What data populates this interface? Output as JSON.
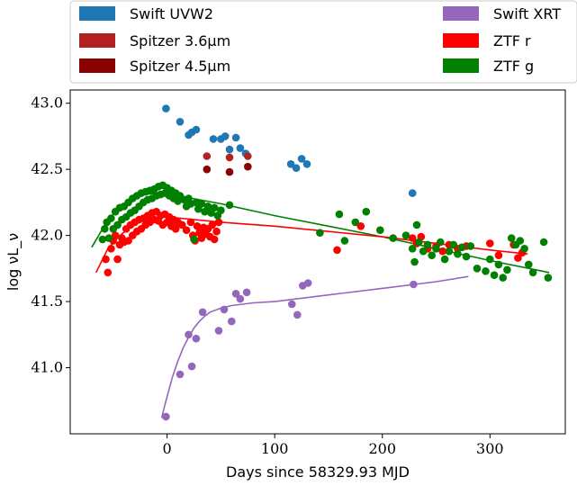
{
  "chart_data": {
    "type": "scatter",
    "xlabel": "Days since 58329.93 MJD",
    "ylabel": "log νL_ν",
    "xlim": [
      -90,
      370
    ],
    "ylim": [
      40.5,
      43.1
    ],
    "xticks": [
      0,
      100,
      200,
      300
    ],
    "yticks": [
      41.0,
      41.5,
      42.0,
      42.5,
      43.0
    ],
    "xtick_labels": [
      "0",
      "100",
      "200",
      "300"
    ],
    "ytick_labels": [
      "41.0",
      "41.5",
      "42.0",
      "42.5",
      "43.0"
    ],
    "legend_position": "top, outside plot",
    "series": [
      {
        "name": "Swift UVW2",
        "color": "#1f77b4",
        "points": [
          [
            -1,
            42.96
          ],
          [
            12,
            42.86
          ],
          [
            20,
            42.76
          ],
          [
            23,
            42.78
          ],
          [
            27,
            42.8
          ],
          [
            43,
            42.73
          ],
          [
            50,
            42.73
          ],
          [
            54,
            42.75
          ],
          [
            58,
            42.65
          ],
          [
            64,
            42.74
          ],
          [
            68,
            42.66
          ],
          [
            73,
            42.62
          ],
          [
            115,
            42.54
          ],
          [
            120,
            42.51
          ],
          [
            125,
            42.58
          ],
          [
            130,
            42.54
          ],
          [
            228,
            42.32
          ]
        ]
      },
      {
        "name": "Spitzer 3.6μm",
        "color": "#b22222",
        "points": [
          [
            37,
            42.6
          ],
          [
            58,
            42.59
          ],
          [
            75,
            42.6
          ]
        ]
      },
      {
        "name": "Spitzer 4.5μm",
        "color": "#8b0000",
        "points": [
          [
            37,
            42.5
          ],
          [
            58,
            42.48
          ],
          [
            75,
            42.52
          ]
        ]
      },
      {
        "name": "Swift XRT",
        "color": "#9467bd",
        "points": [
          [
            -1,
            40.63
          ],
          [
            12,
            40.95
          ],
          [
            20,
            41.25
          ],
          [
            23,
            41.01
          ],
          [
            27,
            41.22
          ],
          [
            33,
            41.42
          ],
          [
            48,
            41.28
          ],
          [
            53,
            41.44
          ],
          [
            60,
            41.35
          ],
          [
            64,
            41.56
          ],
          [
            68,
            41.52
          ],
          [
            74,
            41.57
          ],
          [
            116,
            41.48
          ],
          [
            121,
            41.4
          ],
          [
            126,
            41.62
          ],
          [
            131,
            41.64
          ],
          [
            229,
            41.63
          ]
        ]
      },
      {
        "name": "ZTF r",
        "color": "#ff0000",
        "points": [
          [
            -57,
            41.82
          ],
          [
            -55,
            41.72
          ],
          [
            -52,
            41.9
          ],
          [
            -50,
            41.96
          ],
          [
            -48,
            42.0
          ],
          [
            -46,
            41.82
          ],
          [
            -44,
            41.93
          ],
          [
            -42,
            41.98
          ],
          [
            -40,
            41.95
          ],
          [
            -38,
            42.05
          ],
          [
            -36,
            41.96
          ],
          [
            -34,
            42.08
          ],
          [
            -32,
            42.0
          ],
          [
            -30,
            42.1
          ],
          [
            -28,
            42.03
          ],
          [
            -26,
            42.12
          ],
          [
            -24,
            42.05
          ],
          [
            -22,
            42.13
          ],
          [
            -20,
            42.08
          ],
          [
            -18,
            42.15
          ],
          [
            -16,
            42.1
          ],
          [
            -14,
            42.17
          ],
          [
            -12,
            42.12
          ],
          [
            -10,
            42.18
          ],
          [
            -8,
            42.11
          ],
          [
            -6,
            42.15
          ],
          [
            -4,
            42.08
          ],
          [
            -2,
            42.16
          ],
          [
            0,
            42.1
          ],
          [
            2,
            42.14
          ],
          [
            4,
            42.07
          ],
          [
            6,
            42.12
          ],
          [
            8,
            42.05
          ],
          [
            10,
            42.1
          ],
          [
            14,
            42.08
          ],
          [
            18,
            42.04
          ],
          [
            22,
            42.1
          ],
          [
            24,
            42.0
          ],
          [
            26,
            41.96
          ],
          [
            28,
            42.07
          ],
          [
            30,
            42.02
          ],
          [
            32,
            41.98
          ],
          [
            34,
            42.06
          ],
          [
            36,
            42.01
          ],
          [
            38,
            42.05
          ],
          [
            40,
            41.99
          ],
          [
            42,
            42.08
          ],
          [
            44,
            41.97
          ],
          [
            46,
            42.03
          ],
          [
            48,
            42.1
          ],
          [
            158,
            41.89
          ],
          [
            180,
            42.07
          ],
          [
            228,
            41.98
          ],
          [
            232,
            41.94
          ],
          [
            236,
            41.99
          ],
          [
            242,
            41.9
          ],
          [
            250,
            41.92
          ],
          [
            256,
            41.88
          ],
          [
            262,
            41.93
          ],
          [
            270,
            41.9
          ],
          [
            278,
            41.92
          ],
          [
            300,
            41.94
          ],
          [
            308,
            41.85
          ],
          [
            322,
            41.93
          ],
          [
            326,
            41.83
          ],
          [
            330,
            41.87
          ]
        ]
      },
      {
        "name": "ZTF g",
        "color": "#008000",
        "points": [
          [
            -60,
            41.97
          ],
          [
            -58,
            42.05
          ],
          [
            -56,
            42.1
          ],
          [
            -54,
            41.98
          ],
          [
            -52,
            42.13
          ],
          [
            -50,
            42.05
          ],
          [
            -48,
            42.18
          ],
          [
            -46,
            42.08
          ],
          [
            -44,
            42.21
          ],
          [
            -42,
            42.12
          ],
          [
            -40,
            42.22
          ],
          [
            -38,
            42.14
          ],
          [
            -36,
            42.25
          ],
          [
            -34,
            42.17
          ],
          [
            -32,
            42.28
          ],
          [
            -30,
            42.19
          ],
          [
            -28,
            42.3
          ],
          [
            -26,
            42.22
          ],
          [
            -24,
            42.32
          ],
          [
            -22,
            42.25
          ],
          [
            -20,
            42.33
          ],
          [
            -18,
            42.27
          ],
          [
            -16,
            42.34
          ],
          [
            -14,
            42.28
          ],
          [
            -12,
            42.35
          ],
          [
            -10,
            42.3
          ],
          [
            -8,
            42.37
          ],
          [
            -6,
            42.31
          ],
          [
            -4,
            42.38
          ],
          [
            -2,
            42.32
          ],
          [
            0,
            42.36
          ],
          [
            2,
            42.3
          ],
          [
            4,
            42.34
          ],
          [
            6,
            42.28
          ],
          [
            8,
            42.32
          ],
          [
            10,
            42.26
          ],
          [
            12,
            42.3
          ],
          [
            16,
            42.27
          ],
          [
            18,
            42.22
          ],
          [
            20,
            42.28
          ],
          [
            22,
            42.24
          ],
          [
            25,
            41.97
          ],
          [
            27,
            42.25
          ],
          [
            29,
            42.2
          ],
          [
            32,
            42.24
          ],
          [
            35,
            42.18
          ],
          [
            38,
            42.22
          ],
          [
            41,
            42.17
          ],
          [
            44,
            42.21
          ],
          [
            47,
            42.15
          ],
          [
            50,
            42.19
          ],
          [
            58,
            42.23
          ],
          [
            142,
            42.02
          ],
          [
            160,
            42.16
          ],
          [
            165,
            41.96
          ],
          [
            175,
            42.1
          ],
          [
            185,
            42.18
          ],
          [
            198,
            42.04
          ],
          [
            210,
            41.98
          ],
          [
            222,
            42.0
          ],
          [
            228,
            41.9
          ],
          [
            230,
            41.8
          ],
          [
            232,
            42.08
          ],
          [
            234,
            41.95
          ],
          [
            238,
            41.88
          ],
          [
            242,
            41.93
          ],
          [
            246,
            41.85
          ],
          [
            250,
            41.9
          ],
          [
            254,
            41.95
          ],
          [
            258,
            41.82
          ],
          [
            262,
            41.88
          ],
          [
            266,
            41.93
          ],
          [
            270,
            41.86
          ],
          [
            274,
            41.91
          ],
          [
            278,
            41.84
          ],
          [
            282,
            41.92
          ],
          [
            288,
            41.75
          ],
          [
            296,
            41.73
          ],
          [
            300,
            41.82
          ],
          [
            304,
            41.7
          ],
          [
            308,
            41.78
          ],
          [
            312,
            41.68
          ],
          [
            316,
            41.74
          ],
          [
            320,
            41.98
          ],
          [
            324,
            41.93
          ],
          [
            328,
            41.96
          ],
          [
            332,
            41.9
          ],
          [
            336,
            41.78
          ],
          [
            340,
            41.72
          ],
          [
            350,
            41.95
          ],
          [
            354,
            41.68
          ]
        ]
      }
    ],
    "fit_lines": [
      {
        "color": "#008000",
        "points": [
          [
            -70,
            41.91
          ],
          [
            -60,
            42.05
          ],
          [
            -50,
            42.16
          ],
          [
            -40,
            42.24
          ],
          [
            -30,
            42.29
          ],
          [
            -20,
            42.31
          ],
          [
            -10,
            42.32
          ],
          [
            0,
            42.32
          ],
          [
            10,
            42.3
          ],
          [
            50,
            42.24
          ],
          [
            100,
            42.15
          ],
          [
            150,
            42.07
          ],
          [
            200,
            41.99
          ],
          [
            250,
            41.9
          ],
          [
            300,
            41.81
          ],
          [
            355,
            41.72
          ]
        ]
      },
      {
        "color": "#ff0000",
        "points": [
          [
            -66,
            41.72
          ],
          [
            -55,
            41.9
          ],
          [
            -45,
            41.99
          ],
          [
            -35,
            42.06
          ],
          [
            -25,
            42.1
          ],
          [
            -15,
            42.13
          ],
          [
            -5,
            42.14
          ],
          [
            0,
            42.14
          ],
          [
            50,
            42.1
          ],
          [
            100,
            42.07
          ],
          [
            150,
            42.03
          ],
          [
            200,
            41.99
          ],
          [
            250,
            41.94
          ],
          [
            300,
            41.89
          ],
          [
            335,
            41.86
          ]
        ]
      },
      {
        "color": "#9467bd",
        "points": [
          [
            -5,
            40.62
          ],
          [
            -2,
            40.72
          ],
          [
            0,
            40.78
          ],
          [
            2,
            40.84
          ],
          [
            5,
            40.93
          ],
          [
            10,
            41.05
          ],
          [
            15,
            41.15
          ],
          [
            20,
            41.23
          ],
          [
            25,
            41.3
          ],
          [
            30,
            41.35
          ],
          [
            35,
            41.39
          ],
          [
            40,
            41.42
          ],
          [
            50,
            41.45
          ],
          [
            60,
            41.47
          ],
          [
            80,
            41.49
          ],
          [
            100,
            41.5
          ],
          [
            150,
            41.55
          ],
          [
            200,
            41.6
          ],
          [
            250,
            41.65
          ],
          [
            280,
            41.69
          ]
        ]
      }
    ]
  }
}
